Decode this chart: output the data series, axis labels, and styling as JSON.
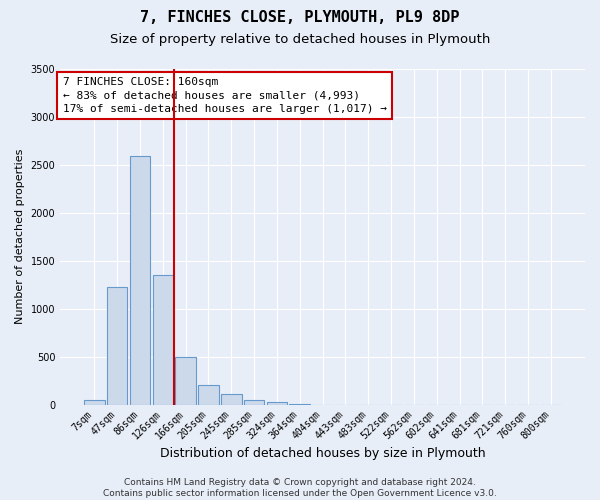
{
  "title": "7, FINCHES CLOSE, PLYMOUTH, PL9 8DP",
  "subtitle": "Size of property relative to detached houses in Plymouth",
  "xlabel": "Distribution of detached houses by size in Plymouth",
  "ylabel": "Number of detached properties",
  "bar_labels": [
    "7sqm",
    "47sqm",
    "86sqm",
    "126sqm",
    "166sqm",
    "205sqm",
    "245sqm",
    "285sqm",
    "324sqm",
    "364sqm",
    "404sqm",
    "443sqm",
    "483sqm",
    "522sqm",
    "562sqm",
    "602sqm",
    "641sqm",
    "681sqm",
    "721sqm",
    "760sqm",
    "800sqm"
  ],
  "bar_values": [
    50,
    1230,
    2590,
    1350,
    500,
    200,
    110,
    45,
    30,
    5,
    0,
    0,
    0,
    0,
    0,
    0,
    0,
    0,
    0,
    0,
    0
  ],
  "bar_color": "#ccd9eb",
  "bar_edge_color": "#6699cc",
  "vline_position": 3.5,
  "vline_color": "#cc0000",
  "annotation_line1": "7 FINCHES CLOSE: 160sqm",
  "annotation_line2": "← 83% of detached houses are smaller (4,993)",
  "annotation_line3": "17% of semi-detached houses are larger (1,017) →",
  "annotation_box_color": "#cc0000",
  "annotation_box_bg": "#ffffff",
  "ylim": [
    0,
    3500
  ],
  "yticks": [
    0,
    500,
    1000,
    1500,
    2000,
    2500,
    3000,
    3500
  ],
  "footer_text": "Contains HM Land Registry data © Crown copyright and database right 2024.\nContains public sector information licensed under the Open Government Licence v3.0.",
  "bg_color": "#e8eef8",
  "plot_bg_color": "#e8eef8",
  "grid_color": "#ffffff",
  "title_fontsize": 11,
  "subtitle_fontsize": 9.5,
  "xlabel_fontsize": 9,
  "ylabel_fontsize": 8,
  "tick_fontsize": 7,
  "annotation_fontsize": 8,
  "footer_fontsize": 6.5
}
